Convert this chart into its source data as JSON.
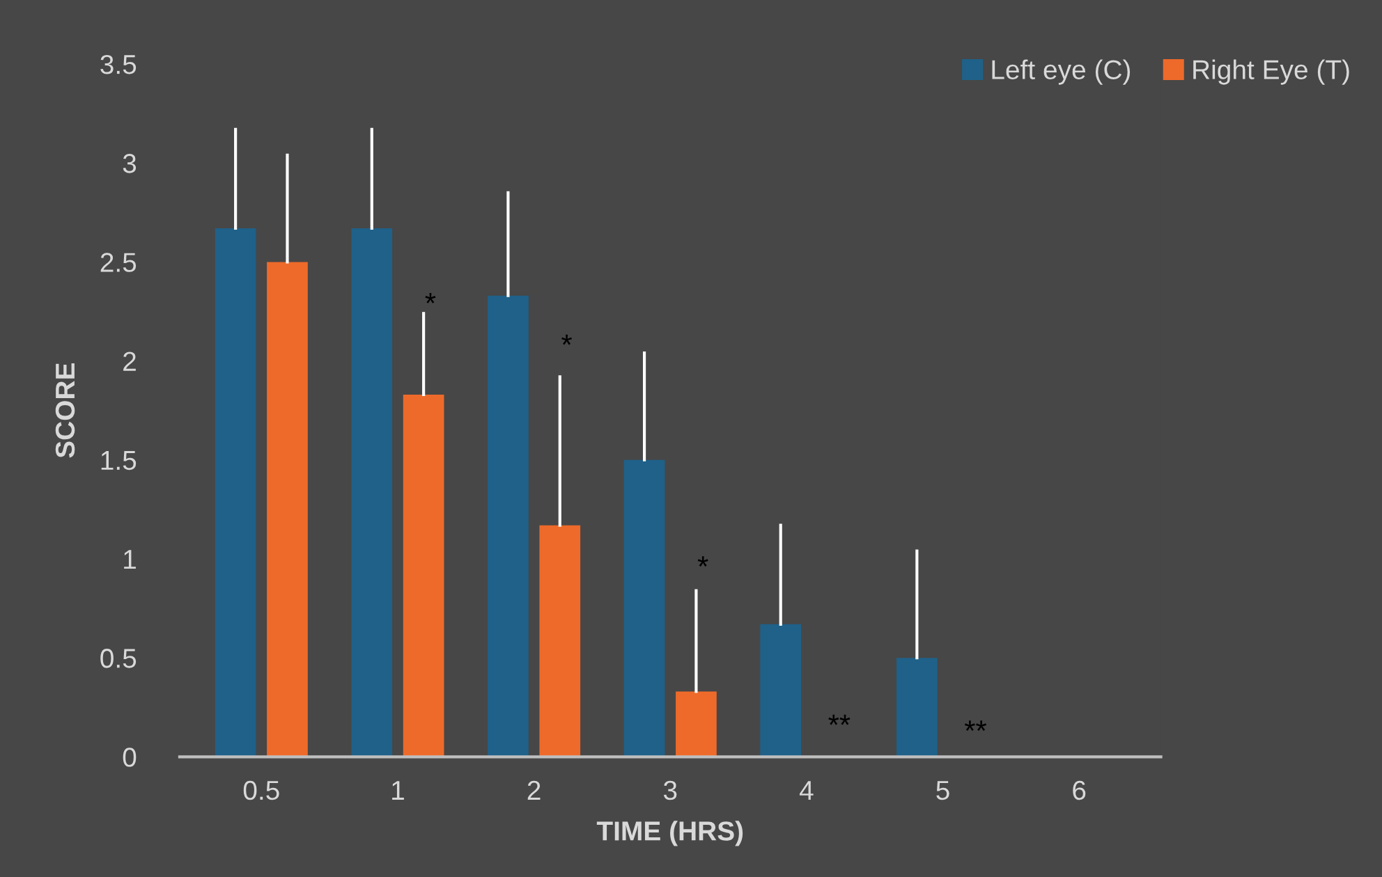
{
  "chart_data": {
    "type": "bar",
    "xlabel": "TIME (HRS)",
    "ylabel": "SCORE",
    "categories": [
      "0.5",
      "1",
      "2",
      "3",
      "4",
      "5",
      "6"
    ],
    "series": [
      {
        "name": "Left eye (C)",
        "color": "#1f6189",
        "values": [
          2.67,
          2.67,
          2.33,
          1.5,
          0.67,
          0.5,
          0
        ],
        "errors": [
          [
            2.67,
            3.17
          ],
          [
            2.67,
            3.17
          ],
          [
            2.33,
            2.85
          ],
          [
            1.5,
            2.04
          ],
          [
            0.67,
            1.17
          ],
          [
            0.5,
            1.04
          ],
          null
        ]
      },
      {
        "name": "Right Eye (T)",
        "color": "#ee6a2a",
        "values": [
          2.5,
          1.83,
          1.17,
          0.33,
          0,
          0,
          0
        ],
        "errors": [
          [
            2.5,
            3.04
          ],
          [
            1.83,
            2.24
          ],
          [
            1.17,
            1.92
          ],
          [
            0.33,
            0.84
          ],
          null,
          null,
          null
        ]
      }
    ],
    "annotations": [
      {
        "text": "*",
        "x": "1",
        "y": 2.28
      },
      {
        "text": "*",
        "x": "2",
        "y": 2.07
      },
      {
        "text": "*",
        "x": "3",
        "y": 0.95
      },
      {
        "text": "**",
        "x": "4",
        "y": 0.15
      },
      {
        "text": "**",
        "x": "5",
        "y": 0.12
      }
    ],
    "ylim": [
      0,
      3.5
    ],
    "yticks": [
      0,
      0.5,
      1,
      1.5,
      2,
      2.5,
      3,
      3.5
    ],
    "grid": false,
    "legend": "top right"
  }
}
